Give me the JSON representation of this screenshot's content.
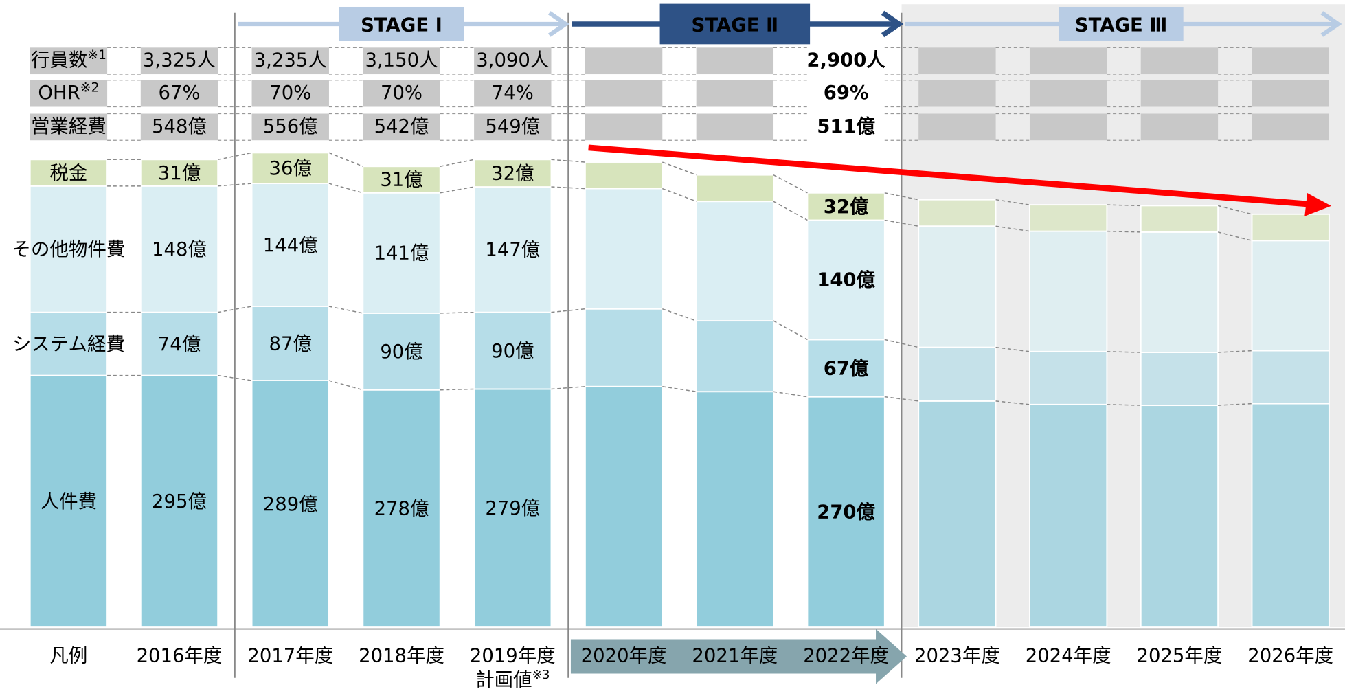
{
  "chart_data": {
    "type": "stacked_bar",
    "legend_title": "凡例",
    "categories": [
      "2016年度",
      "2017年度",
      "2018年度",
      "2019年度",
      "2020年度",
      "2021年度",
      "2022年度",
      "2023年度",
      "2024年度",
      "2025年度",
      "2026年度"
    ],
    "highlight_category": "2022年度",
    "x_note": {
      "category": "2019年度",
      "text": "計画値",
      "mark": "※3"
    },
    "ylim": [
      0,
      735
    ],
    "series": [
      {
        "name": "人件費",
        "color": "#92cddc",
        "values": [
          295,
          289,
          278,
          279,
          282,
          276,
          270,
          265,
          261,
          260,
          262
        ],
        "value_labels": [
          "295億",
          "289億",
          "278億",
          "279億",
          null,
          null,
          "270億",
          null,
          null,
          null,
          null
        ]
      },
      {
        "name": "システム経費",
        "color": "#b6dde8",
        "values": [
          74,
          87,
          90,
          90,
          91,
          83,
          67,
          63,
          62,
          62,
          62
        ],
        "value_labels": [
          "74億",
          "87億",
          "90億",
          "90億",
          null,
          null,
          "67億",
          null,
          null,
          null,
          null
        ]
      },
      {
        "name": "その他物件費",
        "color": "#daeef3",
        "values": [
          148,
          144,
          141,
          147,
          141,
          140,
          140,
          142,
          141,
          141,
          129
        ],
        "value_labels": [
          "148億",
          "144億",
          "141億",
          "147億",
          null,
          null,
          "140億",
          null,
          null,
          null,
          null
        ]
      },
      {
        "name": "税金",
        "color": "#d7e4bc",
        "values": [
          31,
          36,
          31,
          32,
          31,
          31,
          32,
          31,
          31,
          31,
          31
        ],
        "value_labels": [
          "31億",
          "36億",
          "31億",
          "32億",
          null,
          null,
          "32億",
          null,
          null,
          null,
          null
        ]
      }
    ],
    "stages": [
      {
        "label": "STAGE Ⅰ",
        "first": "2017年度",
        "last": "2019年度",
        "color": "#b8cce4",
        "text_color": "#1f3864"
      },
      {
        "label": "STAGE Ⅱ",
        "first": "2020年度",
        "last": "2022年度",
        "color": "#2e5286",
        "text_color": "#ffffff"
      },
      {
        "label": "STAGE Ⅲ",
        "first": "2023年度",
        "last": "2026年度",
        "color": "#b8cce4",
        "text_color": "#1f3864",
        "shaded": true
      }
    ]
  },
  "table": {
    "rows": [
      {
        "label": "行員数",
        "note": "※1",
        "cells": [
          "3,325人",
          "3,235人",
          "3,150人",
          "3,090人",
          null,
          null,
          "2,900人",
          null,
          null,
          null,
          null
        ]
      },
      {
        "label": "OHR",
        "note": "※2",
        "color": "#ff0000",
        "cells": [
          "67%",
          "70%",
          "70%",
          "74%",
          null,
          null,
          "69%",
          null,
          null,
          null,
          null
        ]
      },
      {
        "label": "営業経費",
        "cells": [
          "548億",
          "556億",
          "542億",
          "549億",
          null,
          null,
          "511億",
          null,
          null,
          null,
          null
        ]
      }
    ]
  }
}
